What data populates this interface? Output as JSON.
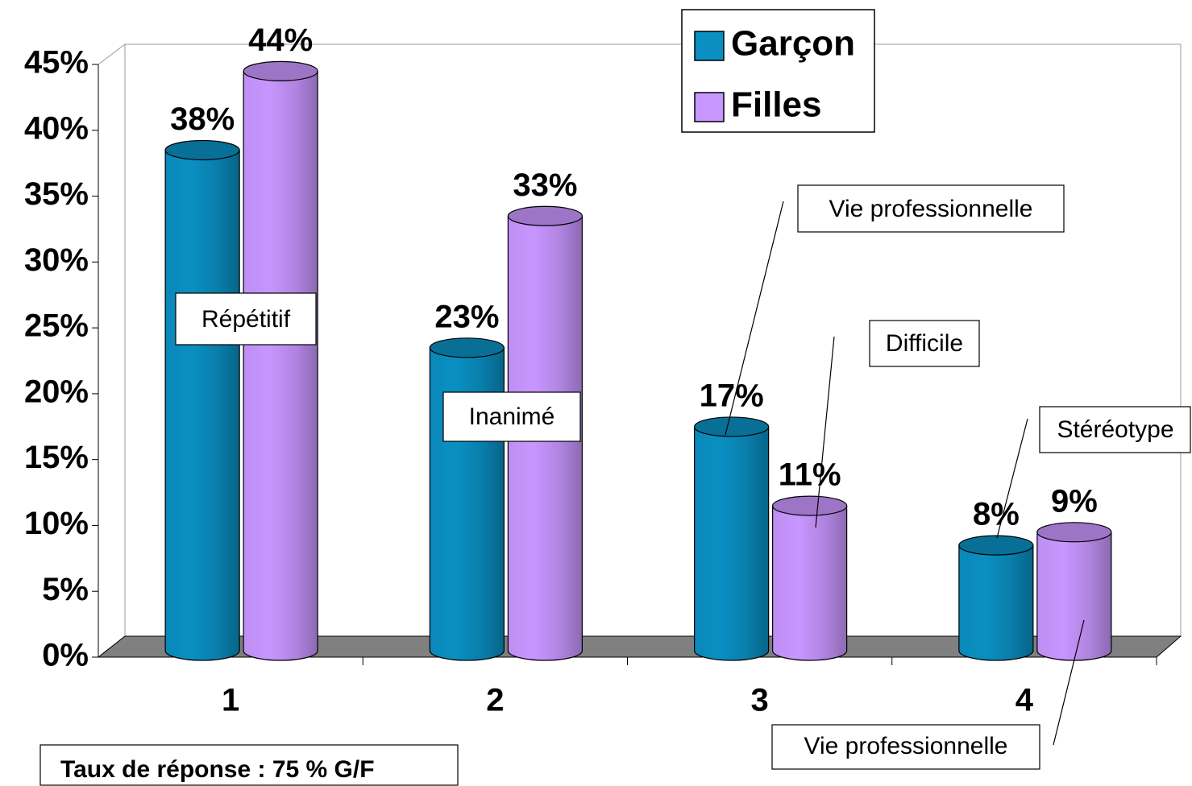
{
  "chart_data": {
    "type": "bar3d",
    "categories": [
      "1",
      "2",
      "3",
      "4"
    ],
    "series": [
      {
        "name": "Garçon",
        "color": "#0a8fc2",
        "values": [
          38,
          23,
          17,
          8
        ],
        "value_labels": [
          "38%",
          "23%",
          "17%",
          "8%"
        ]
      },
      {
        "name": "Filles",
        "color": "#c896ff",
        "values": [
          44,
          33,
          11,
          9
        ],
        "value_labels": [
          "44%",
          "33%",
          "11%",
          "9%"
        ]
      }
    ],
    "ylim": [
      0,
      45
    ],
    "yticks": [
      {
        "value": 0,
        "label": "0%"
      },
      {
        "value": 5,
        "label": "5%"
      },
      {
        "value": 10,
        "label": "10%"
      },
      {
        "value": 15,
        "label": "15%"
      },
      {
        "value": 20,
        "label": "20%"
      },
      {
        "value": 25,
        "label": "25%"
      },
      {
        "value": 30,
        "label": "30%"
      },
      {
        "value": 35,
        "label": "35%"
      },
      {
        "value": 40,
        "label": "40%"
      },
      {
        "value": 45,
        "label": "45%"
      }
    ],
    "legend": "top-right",
    "annotations": [
      "Répétitif",
      "Inanimé",
      "Vie professionnelle",
      "Difficile",
      "Stéréotype",
      "Vie professionnelle",
      "Taux de réponse : 75 % G/F"
    ]
  }
}
